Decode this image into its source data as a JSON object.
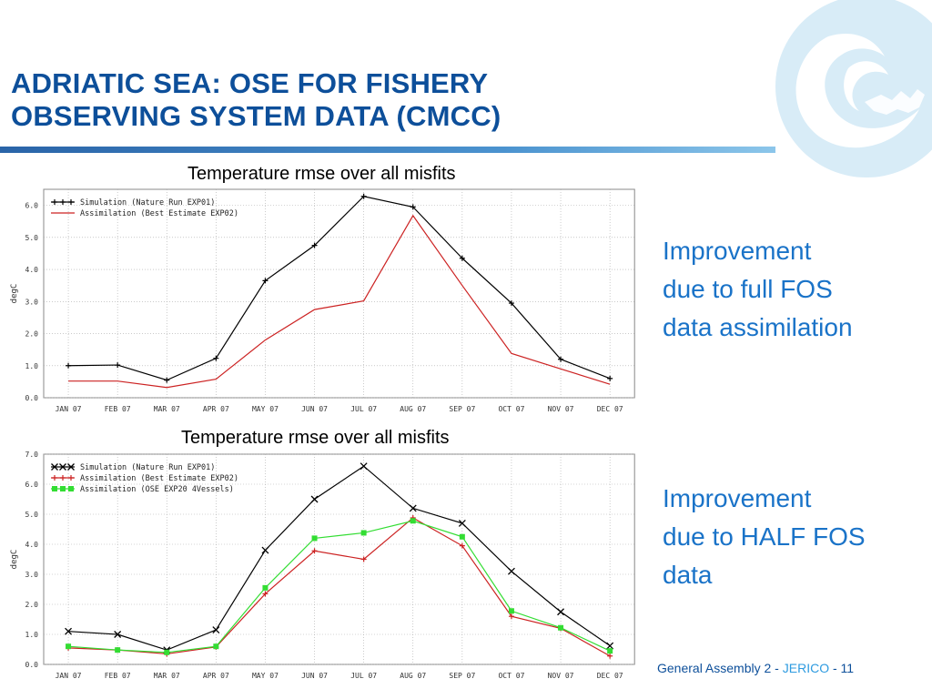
{
  "slide": {
    "title_lines": [
      "ADRIATIC SEA: OSE FOR FISHERY",
      "OBSERVING SYSTEM DATA (CMCC)"
    ],
    "notes": [
      [
        "Improvement",
        "due to full FOS",
        "data assimilation"
      ],
      [
        "Improvement",
        "due to HALF FOS",
        "data"
      ]
    ],
    "footer": {
      "text": "General Assembly 2",
      "sep1": " - ",
      "accent": "JERICO",
      "sep2": " - ",
      "page": "11"
    },
    "colors": {
      "title": "#0d4f9a",
      "note": "#1a73c8",
      "logo": "#bfe0f2"
    },
    "logo_icon": "jerico-logo-icon"
  },
  "chart_data": [
    {
      "type": "line",
      "title": "Temperature rmse over all misfits",
      "xlabel": "",
      "ylabel": "degC",
      "categories": [
        "JAN 07",
        "FEB 07",
        "MAR 07",
        "APR 07",
        "MAY 07",
        "JUN 07",
        "JUL 07",
        "AUG 07",
        "SEP 07",
        "OCT 07",
        "NOV 07",
        "DEC 07"
      ],
      "ylim": [
        0,
        6.5
      ],
      "yticks": [
        "0.0",
        "1.0",
        "2.0",
        "3.0",
        "4.0",
        "5.0",
        "6.0"
      ],
      "grid": true,
      "legend": "top-left",
      "series": [
        {
          "name": "Simulation (Nature Run EXP01)",
          "color": "#000000",
          "marker": "plus",
          "values": [
            1.0,
            1.02,
            0.55,
            1.23,
            3.65,
            4.75,
            6.28,
            5.95,
            4.35,
            2.95,
            1.2,
            0.6
          ]
        },
        {
          "name": "Assimilation (Best Estimate EXP02)",
          "color": "#cc2222",
          "marker": "none",
          "values": [
            0.52,
            0.52,
            0.32,
            0.58,
            1.8,
            2.75,
            3.02,
            5.68,
            3.5,
            1.38,
            0.9,
            0.42
          ]
        }
      ]
    },
    {
      "type": "line",
      "title": "Temperature rmse over all misfits",
      "xlabel": "",
      "ylabel": "degC",
      "categories": [
        "JAN 07",
        "FEB 07",
        "MAR 07",
        "APR 07",
        "MAY 07",
        "JUN 07",
        "JUL 07",
        "AUG 07",
        "SEP 07",
        "OCT 07",
        "NOV 07",
        "DEC 07"
      ],
      "ylim": [
        0,
        7.0
      ],
      "yticks": [
        "0.0",
        "1.0",
        "2.0",
        "3.0",
        "4.0",
        "5.0",
        "6.0",
        "7.0"
      ],
      "grid": true,
      "legend": "top-left",
      "series": [
        {
          "name": "Simulation (Nature Run EXP01)",
          "color": "#000000",
          "marker": "x",
          "values": [
            1.1,
            1.0,
            0.48,
            1.15,
            3.8,
            5.5,
            6.6,
            5.2,
            4.7,
            3.1,
            1.75,
            0.62
          ]
        },
        {
          "name": "Assimilation (Best Estimate EXP02)",
          "color": "#cc2222",
          "marker": "plus",
          "values": [
            0.55,
            0.48,
            0.35,
            0.58,
            2.35,
            3.78,
            3.5,
            4.88,
            3.95,
            1.6,
            1.2,
            0.28
          ]
        },
        {
          "name": "Assimilation (OSE EXP20 4Vessels)",
          "color": "#33dd33",
          "marker": "square",
          "values": [
            0.6,
            0.48,
            0.4,
            0.6,
            2.55,
            4.2,
            4.38,
            4.78,
            4.25,
            1.78,
            1.22,
            0.45
          ]
        }
      ]
    }
  ]
}
